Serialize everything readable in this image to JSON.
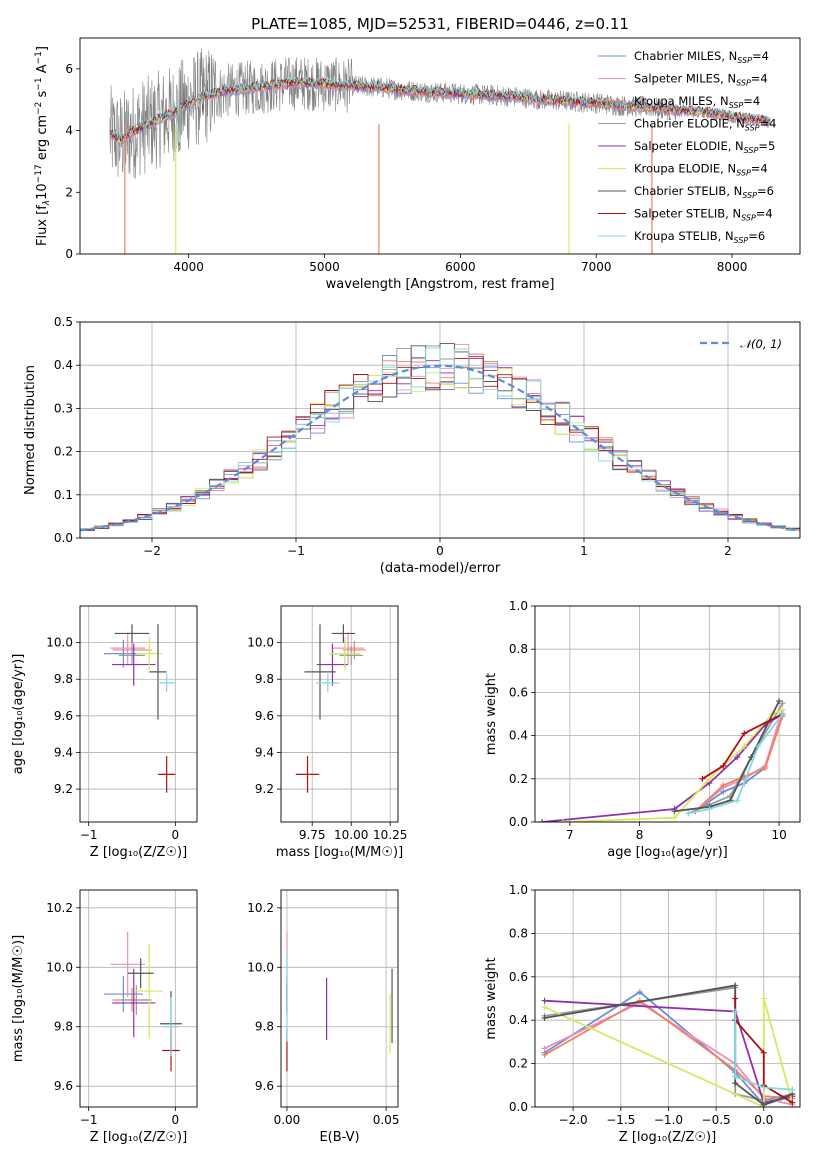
{
  "title": "PLATE=1085, MJD=52531, FIBERID=0446, z=0.11",
  "colors": {
    "Chabrier MILES": "#6a8fd8",
    "Salpeter MILES": "#e890c0",
    "Kroupa MILES": "#f08060",
    "Chabrier ELODIE": "#999999",
    "Salpeter ELODIE": "#9030b0",
    "Kroupa ELODIE": "#d8e860",
    "Chabrier STELIB": "#555555",
    "Salpeter STELIB": "#b01010",
    "Kroupa STELIB": "#80d8e0",
    "spectrum": "#808080",
    "normal": "#5b8dd8"
  },
  "chart_data": [
    {
      "type": "line",
      "panel": "spectrum",
      "xlabel": "wavelength [Angstrom, rest frame]",
      "ylabel_parts": [
        "Flux [f",
        "λ",
        "10",
        "−17",
        " erg cm",
        "−2",
        " s",
        "−1",
        " A",
        "−1",
        "]"
      ],
      "xlim": [
        3200,
        8500
      ],
      "ylim": [
        0,
        7
      ],
      "xticks": [
        "4000",
        "5000",
        "6000",
        "7000",
        "8000"
      ],
      "yticks": [
        "0",
        "2",
        "4",
        "6"
      ],
      "legend_placement": "upper-right",
      "legend": [
        {
          "name": "Chabrier MILES",
          "nssp": "4"
        },
        {
          "name": "Salpeter MILES",
          "nssp": "4"
        },
        {
          "name": "Kroupa MILES",
          "nssp": "4"
        },
        {
          "name": "Chabrier ELODIE",
          "nssp": "4"
        },
        {
          "name": "Salpeter ELODIE",
          "nssp": "5"
        },
        {
          "name": "Kroupa ELODIE",
          "nssp": "4"
        },
        {
          "name": "Chabrier STELIB",
          "nssp": "6"
        },
        {
          "name": "Salpeter STELIB",
          "nssp": "4"
        },
        {
          "name": "Kroupa STELIB",
          "nssp": "6"
        }
      ],
      "nssp_prefix": "N",
      "nssp_sub": "SSP",
      "model_continuum": {
        "x": [
          3420,
          3500,
          3600,
          3700,
          3800,
          3900,
          4000,
          4100,
          4200,
          4300,
          4400,
          4500,
          4600,
          4700,
          4800,
          5000,
          5200,
          5400,
          5600,
          5800,
          6000,
          6200,
          6400,
          6600,
          6800,
          7000,
          7200,
          7400,
          7600,
          7800,
          8000,
          8200,
          8280
        ],
        "y": [
          3.9,
          3.7,
          4.0,
          4.2,
          4.4,
          4.6,
          4.9,
          5.1,
          5.2,
          5.3,
          5.35,
          5.4,
          5.45,
          5.5,
          5.55,
          5.5,
          5.45,
          5.4,
          5.3,
          5.25,
          5.2,
          5.15,
          5.1,
          5.0,
          4.95,
          4.9,
          4.8,
          4.75,
          4.65,
          4.6,
          4.45,
          4.35,
          4.3
        ]
      }
    },
    {
      "type": "bar",
      "panel": "residual-histogram",
      "xlabel": "(data-model)/error",
      "ylabel": "Normed distribution",
      "xlim": [
        -2.5,
        2.5
      ],
      "ylim": [
        0,
        0.5
      ],
      "xticks": [
        "−2",
        "−1",
        "0",
        "1",
        "2"
      ],
      "yticks": [
        "0.0",
        "0.1",
        "0.2",
        "0.3",
        "0.4",
        "0.5"
      ],
      "legend_placement": "upper-right",
      "normal_label": "𝒩(0, 1)",
      "bin_width": 0.1
    },
    {
      "type": "scatter",
      "panel": "age-vs-Z",
      "xlabel": "Z [log₁₀(Z/Z☉)]",
      "ylabel": "age  [log₁₀(age/yr)]",
      "xlim": [
        -1.1,
        0.25
      ],
      "ylim": [
        9.02,
        10.2
      ],
      "xticks": [
        {
          "v": -1,
          "t": "−1"
        },
        {
          "v": 0,
          "t": "0"
        }
      ],
      "yticks": [
        {
          "v": 9.2,
          "t": "9.2"
        },
        {
          "v": 9.4,
          "t": "9.4"
        },
        {
          "v": 9.6,
          "t": "9.6"
        },
        {
          "v": 9.8,
          "t": "9.8"
        },
        {
          "v": 10.0,
          "t": "10.0"
        }
      ],
      "points": [
        {
          "model": "Chabrier MILES",
          "x": -0.6,
          "xe": 0.45,
          "y": 9.94,
          "ye": 0.15
        },
        {
          "model": "Salpeter MILES",
          "x": -0.55,
          "xe": 0.4,
          "y": 9.97,
          "ye": 0.17
        },
        {
          "model": "Kroupa MILES",
          "x": -0.5,
          "xe": 0.45,
          "y": 9.96,
          "ye": 0.1
        },
        {
          "model": "Chabrier ELODIE",
          "x": -0.5,
          "xe": 0.3,
          "y": 9.93,
          "ye": 0.1
        },
        {
          "model": "Salpeter ELODIE",
          "x": -0.48,
          "xe": 0.5,
          "y": 9.88,
          "ye": 0.23
        },
        {
          "model": "Kroupa ELODIE",
          "x": -0.3,
          "xe": 0.3,
          "y": 9.94,
          "ye": 0.18
        },
        {
          "model": "Chabrier STELIB",
          "x": -0.5,
          "xe": 0.4,
          "y": 10.05,
          "ye": 0.1
        },
        {
          "model": "Chabrier STELIB",
          "x": -0.2,
          "xe": 0.2,
          "y": 9.84,
          "ye": 0.52
        },
        {
          "model": "Salpeter STELIB",
          "x": -0.1,
          "xe": 0.2,
          "y": 9.28,
          "ye": 0.2
        },
        {
          "model": "Kroupa STELIB",
          "x": -0.1,
          "xe": 0.2,
          "y": 9.78,
          "ye": 0.1
        }
      ]
    },
    {
      "type": "scatter",
      "panel": "age-vs-mass",
      "xlabel": "mass [log₁₀(M/M☉)]",
      "ylabel": "",
      "xlim": [
        9.55,
        10.3
      ],
      "ylim": [
        9.02,
        10.2
      ],
      "xticks": [
        {
          "v": 9.75,
          "t": "9.75"
        },
        {
          "v": 10.0,
          "t": "10.00"
        },
        {
          "v": 10.25,
          "t": "10.25"
        }
      ],
      "yticks": [
        {
          "v": 9.2,
          "t": "9.2"
        },
        {
          "v": 9.4,
          "t": "9.4"
        },
        {
          "v": 9.6,
          "t": "9.6"
        },
        {
          "v": 9.8,
          "t": "9.8"
        },
        {
          "v": 10.0,
          "t": "10.0"
        }
      ],
      "points": [
        {
          "model": "Chabrier MILES",
          "x": 9.96,
          "xe": 0.2,
          "y": 9.94,
          "ye": 0.15
        },
        {
          "model": "Salpeter MILES",
          "x": 9.98,
          "xe": 0.2,
          "y": 9.97,
          "ye": 0.17
        },
        {
          "model": "Kroupa MILES",
          "x": 10.02,
          "xe": 0.15,
          "y": 9.96,
          "ye": 0.1
        },
        {
          "model": "Chabrier ELODIE",
          "x": 10.0,
          "xe": 0.15,
          "y": 9.93,
          "ye": 0.1
        },
        {
          "model": "Salpeter ELODIE",
          "x": 9.88,
          "xe": 0.2,
          "y": 9.88,
          "ye": 0.23
        },
        {
          "model": "Kroupa ELODIE",
          "x": 9.96,
          "xe": 0.2,
          "y": 9.94,
          "ye": 0.18
        },
        {
          "model": "Chabrier STELIB",
          "x": 9.95,
          "xe": 0.15,
          "y": 10.05,
          "ye": 0.1
        },
        {
          "model": "Chabrier STELIB",
          "x": 9.8,
          "xe": 0.2,
          "y": 9.84,
          "ye": 0.52
        },
        {
          "model": "Salpeter STELIB",
          "x": 9.72,
          "xe": 0.15,
          "y": 9.28,
          "ye": 0.2
        },
        {
          "model": "Kroupa STELIB",
          "x": 9.85,
          "xe": 0.15,
          "y": 9.78,
          "ye": 0.1
        }
      ]
    },
    {
      "type": "line",
      "panel": "mass-weight-vs-age",
      "xlabel": "age  [log₁₀(age/yr)]",
      "ylabel": "mass weight",
      "xlim": [
        6.5,
        10.3
      ],
      "ylim": [
        0,
        1
      ],
      "xticks": [
        {
          "v": 7,
          "t": "7"
        },
        {
          "v": 8,
          "t": "8"
        },
        {
          "v": 9,
          "t": "9"
        },
        {
          "v": 10,
          "t": "10"
        }
      ],
      "yticks": [
        {
          "v": 0,
          "t": "0.0"
        },
        {
          "v": 0.2,
          "t": "0.2"
        },
        {
          "v": 0.4,
          "t": "0.4"
        },
        {
          "v": 0.6,
          "t": "0.6"
        },
        {
          "v": 0.8,
          "t": "0.8"
        },
        {
          "v": 1.0,
          "t": "1.0"
        }
      ],
      "series": [
        {
          "model": "Chabrier MILES",
          "x": [
            8.8,
            9.2,
            9.5,
            9.8,
            10.05
          ],
          "y": [
            0.05,
            0.14,
            0.18,
            0.25,
            0.5
          ]
        },
        {
          "model": "Salpeter MILES",
          "x": [
            8.8,
            9.2,
            9.5,
            9.8,
            10.05
          ],
          "y": [
            0.05,
            0.16,
            0.2,
            0.26,
            0.52
          ]
        },
        {
          "model": "Kroupa MILES",
          "x": [
            8.8,
            9.2,
            9.5,
            9.8,
            10.05
          ],
          "y": [
            0.05,
            0.17,
            0.21,
            0.25,
            0.49
          ]
        },
        {
          "model": "Chabrier ELODIE",
          "x": [
            8.7,
            9.0,
            9.3,
            9.6,
            10.05
          ],
          "y": [
            0.04,
            0.08,
            0.12,
            0.3,
            0.55
          ]
        },
        {
          "model": "Salpeter ELODIE",
          "x": [
            6.6,
            8.5,
            9.0,
            9.4,
            9.8,
            10.05
          ],
          "y": [
            0.0,
            0.06,
            0.18,
            0.3,
            0.45,
            0.5
          ]
        },
        {
          "model": "Kroupa ELODIE",
          "x": [
            6.9,
            8.5,
            9.0,
            9.5,
            9.9,
            10.05
          ],
          "y": [
            0.0,
            0.02,
            0.2,
            0.35,
            0.5,
            0.52
          ]
        },
        {
          "model": "Chabrier STELIB",
          "x": [
            8.5,
            9.0,
            9.3,
            9.6,
            10.0
          ],
          "y": [
            0.05,
            0.07,
            0.1,
            0.3,
            0.56
          ]
        },
        {
          "model": "Salpeter STELIB",
          "x": [
            8.9,
            9.2,
            9.5,
            10.05
          ],
          "y": [
            0.2,
            0.26,
            0.41,
            0.5
          ]
        },
        {
          "model": "Kroupa STELIB",
          "x": [
            8.7,
            9.0,
            9.4,
            9.7,
            10.05
          ],
          "y": [
            0.04,
            0.06,
            0.1,
            0.35,
            0.5
          ]
        }
      ]
    },
    {
      "type": "scatter",
      "panel": "mass-vs-Z",
      "xlabel": "Z [log₁₀(Z/Z☉)]",
      "ylabel": "mass [log₁₀(M/M☉)]",
      "xlim": [
        -1.1,
        0.25
      ],
      "ylim": [
        9.53,
        10.26
      ],
      "xticks": [
        {
          "v": -1,
          "t": "−1"
        },
        {
          "v": 0,
          "t": "0"
        }
      ],
      "yticks": [
        {
          "v": 9.6,
          "t": "9.6"
        },
        {
          "v": 9.8,
          "t": "9.8"
        },
        {
          "v": 10.0,
          "t": "10.0"
        },
        {
          "v": 10.2,
          "t": "10.2"
        }
      ],
      "points": [
        {
          "model": "Chabrier MILES",
          "x": -0.6,
          "xe": 0.45,
          "y": 9.91,
          "ye": 0.12
        },
        {
          "model": "Salpeter MILES",
          "x": -0.55,
          "xe": 0.4,
          "y": 10.01,
          "ye": 0.22
        },
        {
          "model": "Kroupa MILES",
          "x": -0.5,
          "xe": 0.45,
          "y": 9.89,
          "ye": 0.08
        },
        {
          "model": "Chabrier ELODIE",
          "x": -0.45,
          "xe": 0.35,
          "y": 9.89,
          "ye": 0.1
        },
        {
          "model": "Salpeter ELODIE",
          "x": -0.48,
          "xe": 0.5,
          "y": 9.88,
          "ye": 0.23
        },
        {
          "model": "Kroupa ELODIE",
          "x": -0.3,
          "xe": 0.3,
          "y": 9.92,
          "ye": 0.32
        },
        {
          "model": "Chabrier STELIB",
          "x": -0.4,
          "xe": 0.3,
          "y": 9.98,
          "ye": 0.1
        },
        {
          "model": "Chabrier STELIB",
          "x": -0.05,
          "xe": 0.25,
          "y": 9.81,
          "ye": 0.22
        },
        {
          "model": "Salpeter STELIB",
          "x": -0.05,
          "xe": 0.2,
          "y": 9.72,
          "ye": 0.14
        },
        {
          "model": "Kroupa STELIB",
          "x": -0.05,
          "xe": 0.2,
          "y": 9.8,
          "ye": 0.2
        }
      ]
    },
    {
      "type": "scatter",
      "panel": "mass-vs-EBV",
      "xlabel": "E(B-V)",
      "ylabel": "",
      "xlim": [
        -0.003,
        0.056
      ],
      "ylim": [
        9.53,
        10.26
      ],
      "xticks": [
        {
          "v": 0,
          "t": "0.00"
        },
        {
          "v": 0.05,
          "t": "0.05"
        }
      ],
      "yticks": [
        {
          "v": 9.6,
          "t": "9.6"
        },
        {
          "v": 9.8,
          "t": "9.8"
        },
        {
          "v": 10.0,
          "t": "10.0"
        },
        {
          "v": 10.2,
          "t": "10.2"
        }
      ],
      "points": [
        {
          "model": "Chabrier MILES",
          "x": 0.0,
          "xe": 0,
          "y": 9.91,
          "ye": 0.12
        },
        {
          "model": "Salpeter MILES",
          "x": 0.0,
          "xe": 0,
          "y": 10.01,
          "ye": 0.22
        },
        {
          "model": "Kroupa MILES",
          "x": 0.0,
          "xe": 0,
          "y": 9.89,
          "ye": 0.08
        },
        {
          "model": "Chabrier ELODIE",
          "x": 0.0,
          "xe": 0,
          "y": 9.89,
          "ye": 0.12
        },
        {
          "model": "Salpeter ELODIE",
          "x": 0.02,
          "xe": 0,
          "y": 9.86,
          "ye": 0.21
        },
        {
          "model": "Kroupa ELODIE",
          "x": 0.052,
          "xe": 0,
          "y": 9.81,
          "ye": 0.2
        },
        {
          "model": "Chabrier STELIB",
          "x": 0.053,
          "xe": 0,
          "y": 9.87,
          "ye": 0.25
        },
        {
          "model": "Salpeter STELIB",
          "x": 0.0,
          "xe": 0,
          "y": 9.72,
          "ye": 0.14
        },
        {
          "model": "Kroupa STELIB",
          "x": 0.0,
          "xe": 0,
          "y": 9.9,
          "ye": 0.3
        }
      ]
    },
    {
      "type": "line",
      "panel": "mass-weight-vs-Z",
      "xlabel": "Z [log₁₀(Z/Z☉)]",
      "ylabel": "mass weight",
      "xlim": [
        -2.4,
        0.38
      ],
      "ylim": [
        0,
        1
      ],
      "xticks": [
        {
          "v": -2.0,
          "t": "−2.0"
        },
        {
          "v": -1.5,
          "t": "−1.5"
        },
        {
          "v": -1.0,
          "t": "−1.0"
        },
        {
          "v": -0.5,
          "t": "−0.5"
        },
        {
          "v": 0.0,
          "t": "0.0"
        }
      ],
      "yticks": [
        {
          "v": 0,
          "t": "0.0"
        },
        {
          "v": 0.2,
          "t": "0.2"
        },
        {
          "v": 0.4,
          "t": "0.4"
        },
        {
          "v": 0.6,
          "t": "0.6"
        },
        {
          "v": 0.8,
          "t": "0.8"
        },
        {
          "v": 1.0,
          "t": "1.0"
        }
      ],
      "series": [
        {
          "model": "Chabrier MILES",
          "x": [
            -2.3,
            -1.3,
            -0.3,
            0.0,
            0.3
          ],
          "y": [
            0.25,
            0.53,
            0.16,
            0.01,
            0.05
          ]
        },
        {
          "model": "Salpeter MILES",
          "x": [
            -2.3,
            -1.3,
            -0.3,
            0.0,
            0.3
          ],
          "y": [
            0.27,
            0.48,
            0.2,
            0.04,
            0.01
          ]
        },
        {
          "model": "Kroupa MILES",
          "x": [
            -2.3,
            -1.3,
            -0.3,
            0.0,
            0.3
          ],
          "y": [
            0.24,
            0.49,
            0.17,
            0.05,
            0.04
          ]
        },
        {
          "model": "Chabrier ELODIE",
          "x": [
            -2.3,
            -0.3,
            -0.3,
            0.0,
            0.3
          ],
          "y": [
            0.42,
            0.55,
            0.06,
            0.03,
            0.06
          ]
        },
        {
          "model": "Salpeter ELODIE",
          "x": [
            -2.3,
            -0.3,
            0.0,
            0.3
          ],
          "y": [
            0.49,
            0.44,
            0.02,
            0.05
          ]
        },
        {
          "model": "Kroupa ELODIE",
          "x": [
            -2.3,
            0.0,
            0.0,
            0.3
          ],
          "y": [
            0.46,
            0.0,
            0.5,
            0.02
          ]
        },
        {
          "model": "Chabrier STELIB",
          "x": [
            -2.3,
            -0.3,
            -0.3,
            0.0,
            0.3
          ],
          "y": [
            0.41,
            0.56,
            0.11,
            0.01,
            0.06
          ]
        },
        {
          "model": "Salpeter STELIB",
          "x": [
            -0.3,
            -0.3,
            0.0,
            0.0,
            0.3
          ],
          "y": [
            0.5,
            0.4,
            0.25,
            0.1,
            0.02
          ]
        },
        {
          "model": "Kroupa STELIB",
          "x": [
            -0.3,
            -0.3,
            0.0,
            0.3
          ],
          "y": [
            0.44,
            0.14,
            0.09,
            0.08
          ]
        }
      ]
    }
  ]
}
